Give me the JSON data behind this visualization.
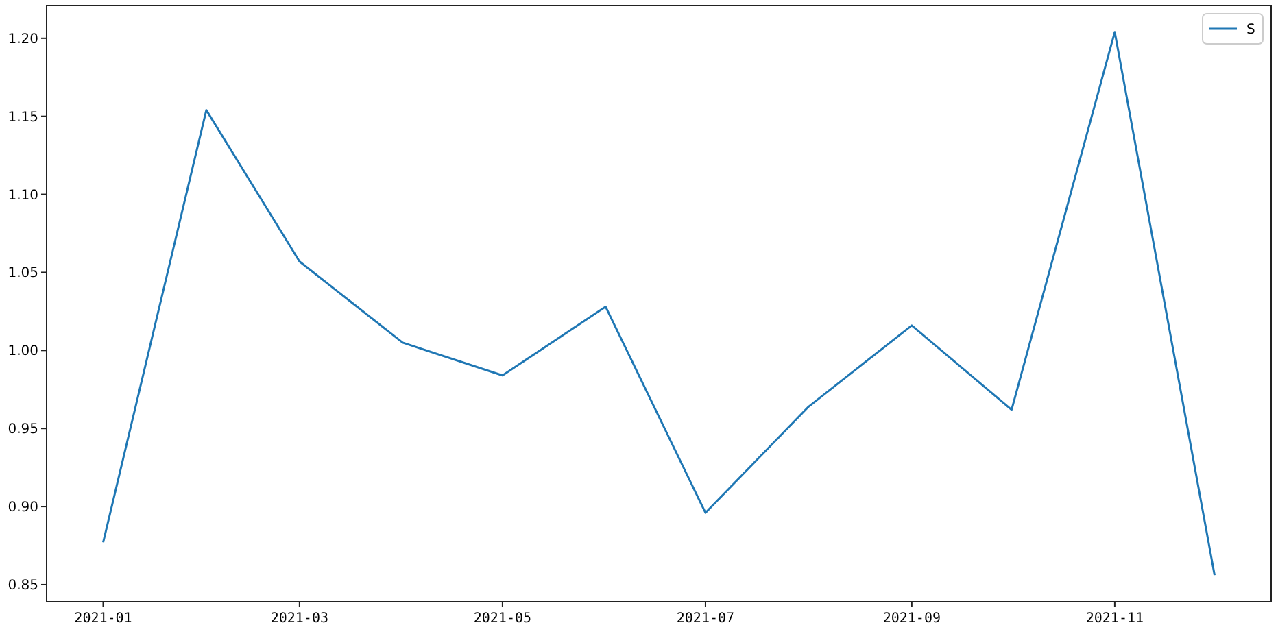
{
  "chart_data": {
    "type": "line",
    "x": [
      "2021-01",
      "2021-02",
      "2021-03",
      "2021-04",
      "2021-05",
      "2021-06",
      "2021-07",
      "2021-08",
      "2021-09",
      "2021-10",
      "2021-11",
      "2021-12"
    ],
    "series": [
      {
        "name": "S",
        "color": "#1f77b4",
        "values": [
          0.877,
          1.154,
          1.057,
          1.005,
          0.984,
          1.028,
          0.896,
          0.964,
          1.016,
          0.962,
          1.204,
          0.856
        ]
      }
    ],
    "xlim": [
      "2020-12-15",
      "2021-12-18"
    ],
    "xticks": [
      "2021-01",
      "2021-03",
      "2021-05",
      "2021-07",
      "2021-09",
      "2021-11"
    ],
    "ylim": [
      0.839,
      1.221
    ],
    "yticks": [
      0.85,
      {
        "value": 0.9,
        "label": "0.90"
      },
      0.95,
      {
        "value": 1.0,
        "label": "1.00"
      },
      1.05,
      {
        "value": 1.1,
        "label": "1.10"
      },
      1.15,
      {
        "value": 1.2,
        "label": "1.20"
      }
    ],
    "legend": "top right",
    "grid": false
  }
}
